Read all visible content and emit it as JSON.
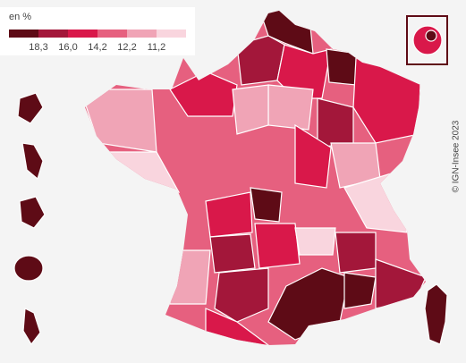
{
  "legend": {
    "unit": "en %",
    "colors": [
      "#5e0b16",
      "#a3173a",
      "#d9184a",
      "#e6607f",
      "#f0a4b6",
      "#f9d5de"
    ],
    "breaks": [
      "18,3",
      "16,0",
      "14,2",
      "12,2",
      "11,2"
    ]
  },
  "credit": "© IGN-Insee 2023"
}
